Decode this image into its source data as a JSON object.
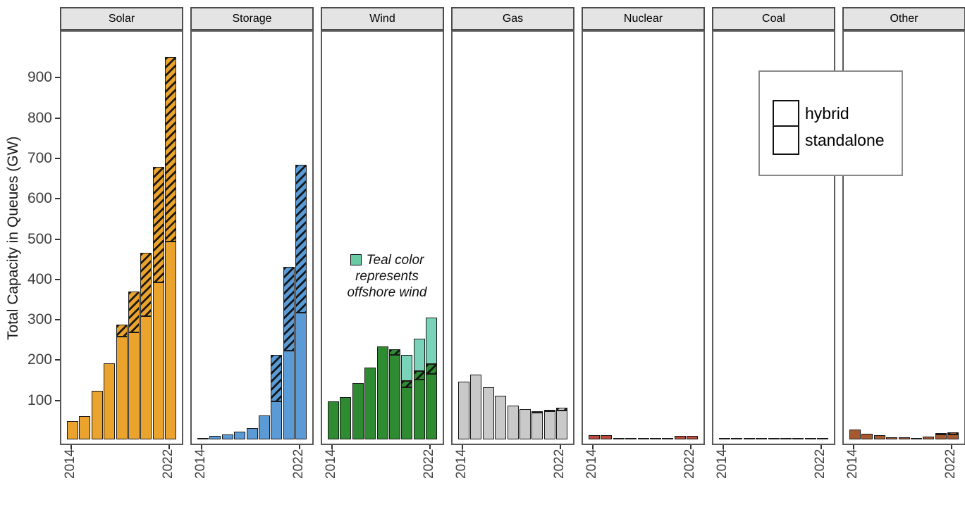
{
  "chart_data": {
    "type": "bar",
    "title": "",
    "ylabel": "Total Capacity in Queues (GW)",
    "unit": "GW",
    "ylim": [
      0,
      1030
    ],
    "yticks": [
      100,
      200,
      300,
      400,
      500,
      600,
      700,
      800,
      900
    ],
    "years": [
      2014,
      2015,
      2016,
      2017,
      2018,
      2019,
      2020,
      2021,
      2022
    ],
    "x_shown_tick_labels": [
      "2014",
      "2022"
    ],
    "grid": false,
    "legend": {
      "position": "top-right",
      "items": [
        {
          "label": "hybrid",
          "style": "hatched"
        },
        {
          "label": "standalone",
          "style": "plain"
        }
      ]
    },
    "annotation": {
      "panel": "Wind",
      "lines": [
        "Teal color",
        "represents",
        "offshore wind"
      ],
      "swatch_color": "#68CBA4"
    },
    "facets": [
      {
        "label": "Solar",
        "fill": "#EAA42D",
        "series": {
          "standalone": [
            45,
            57,
            120,
            188,
            255,
            266,
            305,
            390,
            490
          ],
          "hybrid": [
            0,
            0,
            0,
            0,
            29,
            101,
            157,
            286,
            457
          ]
        }
      },
      {
        "label": "Storage",
        "fill": "#5B9BD5",
        "series": {
          "standalone": [
            2,
            8,
            13,
            19,
            28,
            60,
            95,
            220,
            315
          ],
          "hybrid": [
            0,
            0,
            0,
            0,
            0,
            0,
            115,
            207,
            365
          ]
        }
      },
      {
        "label": "Wind",
        "fill": "#2E8B31",
        "offshore_fill": "#79D3B9",
        "series": {
          "standalone": [
            95,
            105,
            140,
            178,
            231,
            209,
            129,
            149,
            163
          ],
          "hybrid": [
            0,
            0,
            0,
            0,
            0,
            14,
            16,
            21,
            24
          ],
          "offshore": [
            0,
            0,
            0,
            0,
            0,
            0,
            65,
            79,
            115
          ]
        }
      },
      {
        "label": "Gas",
        "fill": "#C9C9C9",
        "series": {
          "standalone": [
            144,
            161,
            130,
            108,
            83,
            75,
            67,
            69,
            71
          ],
          "hybrid": [
            0,
            0,
            0,
            0,
            0,
            0,
            3,
            2,
            7
          ]
        }
      },
      {
        "label": "Nuclear",
        "fill": "#BC4B3C",
        "series": {
          "standalone": [
            10,
            10,
            3,
            1,
            1,
            4,
            3,
            8,
            8
          ],
          "hybrid": [
            0,
            0,
            0,
            0,
            0,
            0,
            0,
            0,
            0
          ]
        }
      },
      {
        "label": "Coal",
        "fill": "#3A3A3A",
        "series": {
          "standalone": [
            2,
            3,
            1,
            1,
            1,
            1,
            1,
            1,
            2
          ],
          "hybrid": [
            0,
            0,
            0,
            0,
            0,
            0,
            0,
            0,
            0
          ]
        }
      },
      {
        "label": "Other",
        "fill": "#A5592E",
        "series": {
          "standalone": [
            24,
            14,
            11,
            6,
            6,
            3,
            7,
            12,
            13
          ],
          "hybrid": [
            0,
            0,
            0,
            0,
            0,
            0,
            0,
            4,
            5
          ]
        }
      }
    ]
  }
}
